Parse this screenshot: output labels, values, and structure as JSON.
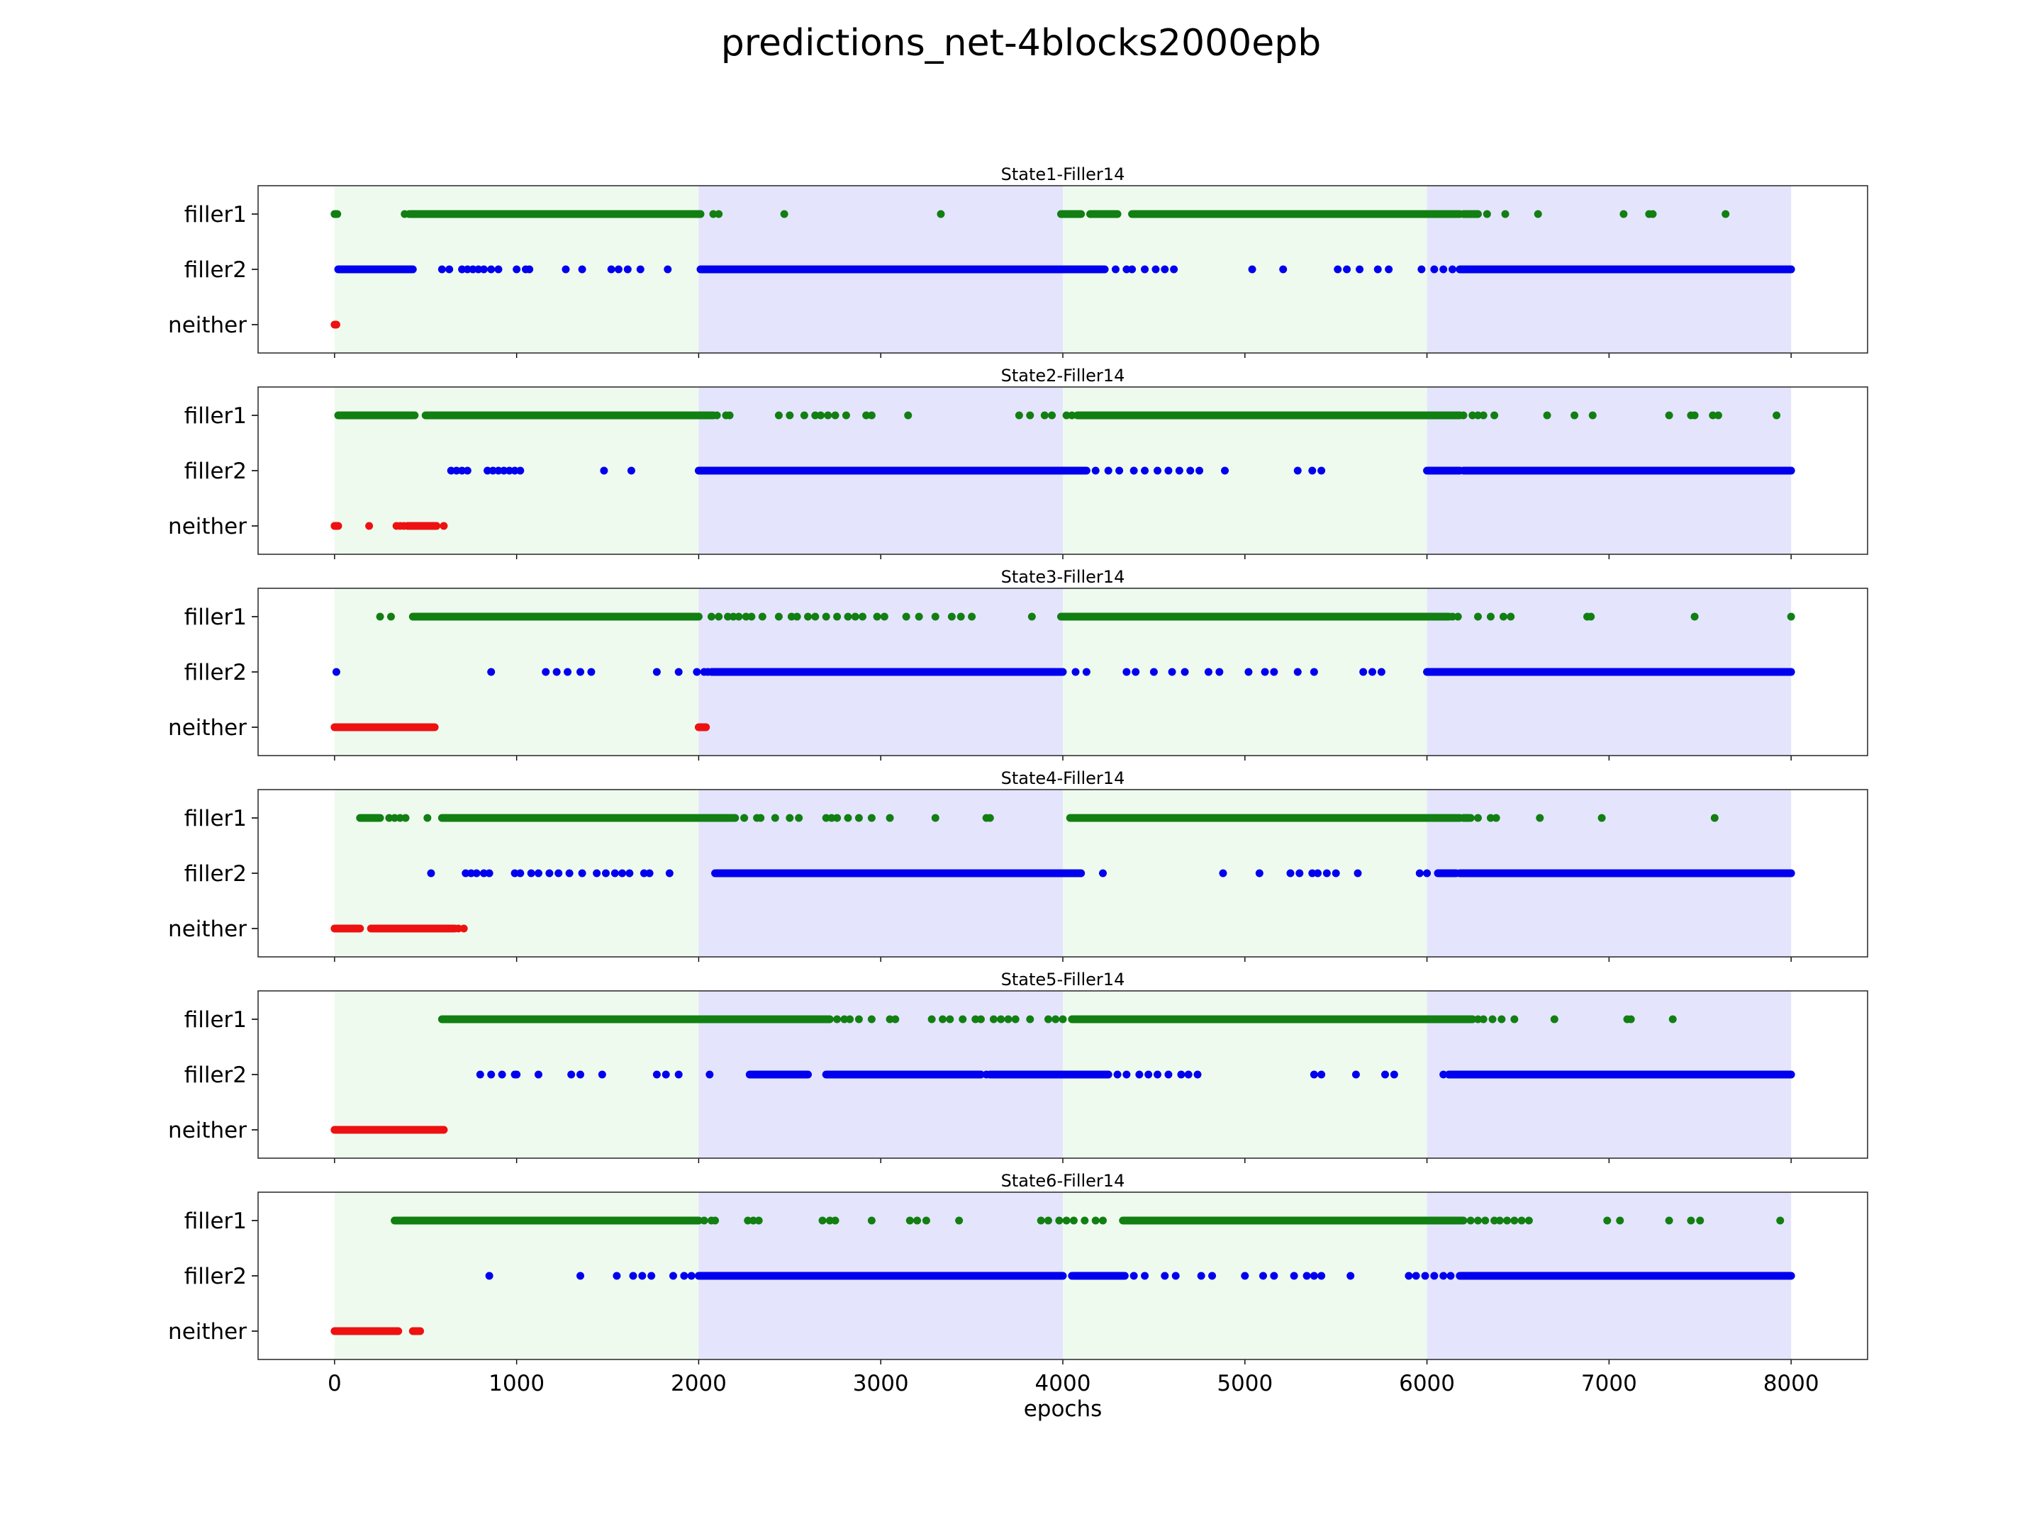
{
  "figure": {
    "title": "predictions_net-4blocks2000epb"
  },
  "chart_data": {
    "type": "scatter",
    "title": "predictions_net-4blocks2000epb",
    "xlabel": "epochs",
    "xlim": [
      -420,
      8420
    ],
    "x_ticks": [
      0,
      1000,
      2000,
      3000,
      4000,
      5000,
      6000,
      7000,
      8000
    ],
    "categories": [
      "filler1",
      "filler2",
      "neither"
    ],
    "colors": {
      "filler1": "#117f11",
      "filler2": "#0000ee",
      "neither": "#ee1111"
    },
    "shaded_blocks": [
      {
        "start": 0,
        "end": 2000,
        "color": "#effaef"
      },
      {
        "start": 2000,
        "end": 4000,
        "color": "#e4e4fd"
      },
      {
        "start": 4000,
        "end": 6000,
        "color": "#effaef"
      },
      {
        "start": 6000,
        "end": 8000,
        "color": "#e4e4fd"
      }
    ],
    "subplots": [
      {
        "title": "State1-Filler14",
        "series": [
          {
            "name": "filler1",
            "segments": [
              [
                0,
                15
              ],
              [
                410,
                2010
              ],
              [
                3990,
                4100
              ],
              [
                4150,
                4300
              ],
              [
                4380,
                6180
              ],
              [
                6200,
                6280
              ]
            ],
            "points": [
              385,
              2080,
              2110,
              2470,
              3330,
              6330,
              6430,
              6610,
              7080,
              7220,
              7240,
              7640
            ]
          },
          {
            "name": "filler2",
            "segments": [
              [
                20,
                430
              ],
              [
                2010,
                4230
              ],
              [
                6180,
                8000
              ]
            ],
            "points": [
              590,
              630,
              700,
              730,
              760,
              790,
              820,
              860,
              900,
              1000,
              1050,
              1070,
              1270,
              1360,
              1520,
              1560,
              1610,
              1680,
              1830,
              4290,
              4350,
              4380,
              4450,
              4510,
              4560,
              4610,
              5040,
              5210,
              5510,
              5560,
              5630,
              5730,
              5790,
              5970,
              6040,
              6090,
              6140
            ]
          },
          {
            "name": "neither",
            "segments": [
              [
                0,
                10
              ]
            ],
            "points": []
          }
        ]
      },
      {
        "title": "State2-Filler14",
        "series": [
          {
            "name": "filler1",
            "segments": [
              [
                20,
                440
              ],
              [
                500,
                2080
              ],
              [
                4080,
                6180
              ]
            ],
            "points": [
              2100,
              2150,
              2170,
              2440,
              2500,
              2580,
              2640,
              2670,
              2710,
              2750,
              2810,
              2920,
              2950,
              3150,
              3760,
              3820,
              3900,
              3940,
              4020,
              4050,
              6200,
              6250,
              6280,
              6310,
              6370,
              6660,
              6810,
              6910,
              7330,
              7450,
              7470,
              7570,
              7600,
              7920
            ]
          },
          {
            "name": "filler2",
            "segments": [
              [
                2000,
                4130
              ],
              [
                6000,
                6180
              ],
              [
                6200,
                8000
              ]
            ],
            "points": [
              640,
              670,
              700,
              730,
              840,
              870,
              900,
              930,
              960,
              990,
              1020,
              1480,
              1630,
              4180,
              4250,
              4310,
              4390,
              4450,
              4520,
              4580,
              4640,
              4700,
              4750,
              4890,
              5290,
              5370,
              5420
            ]
          },
          {
            "name": "neither",
            "segments": [
              [
                0,
                20
              ],
              [
                400,
                560
              ]
            ],
            "points": [
              190,
              340,
              360,
              380,
              600
            ]
          }
        ]
      },
      {
        "title": "State3-Filler14",
        "series": [
          {
            "name": "filler1",
            "segments": [
              [
                430,
                2000
              ],
              [
                4000,
                6120
              ]
            ],
            "points": [
              250,
              310,
              2070,
              2110,
              2160,
              2190,
              2220,
              2260,
              2290,
              2350,
              2440,
              2510,
              2540,
              2600,
              2640,
              2700,
              2760,
              2820,
              2860,
              2900,
              2980,
              3020,
              3140,
              3210,
              3300,
              3390,
              3440,
              3500,
              3830,
              3990,
              6140,
              6170,
              6280,
              6350,
              6420,
              6460,
              6880,
              6900,
              7470,
              8000
            ]
          },
          {
            "name": "filler2",
            "segments": [
              [
                2070,
                4000
              ],
              [
                6000,
                8000
              ]
            ],
            "points": [
              10,
              860,
              1160,
              1220,
              1280,
              1350,
              1410,
              1770,
              1890,
              1990,
              2030,
              2050,
              4070,
              4130,
              4350,
              4400,
              4500,
              4600,
              4670,
              4800,
              4860,
              5020,
              5110,
              5160,
              5290,
              5380,
              5650,
              5700,
              5750
            ]
          },
          {
            "name": "neither",
            "segments": [
              [
                0,
                550
              ],
              [
                2000,
                2040
              ]
            ],
            "points": []
          }
        ]
      },
      {
        "title": "State4-Filler14",
        "series": [
          {
            "name": "filler1",
            "segments": [
              [
                140,
                250
              ],
              [
                590,
                2200
              ],
              [
                4040,
                6180
              ],
              [
                6200,
                6240
              ]
            ],
            "points": [
              300,
              330,
              360,
              390,
              510,
              2250,
              2320,
              2340,
              2420,
              2500,
              2550,
              2700,
              2730,
              2760,
              2820,
              2880,
              2950,
              3050,
              3300,
              3580,
              3600,
              6280,
              6350,
              6380,
              6620,
              6960,
              7580
            ]
          },
          {
            "name": "filler2",
            "segments": [
              [
                2090,
                4100
              ],
              [
                6060,
                6160
              ],
              [
                6180,
                8000
              ]
            ],
            "points": [
              530,
              720,
              750,
              780,
              820,
              850,
              990,
              1020,
              1080,
              1120,
              1180,
              1230,
              1290,
              1360,
              1440,
              1490,
              1540,
              1580,
              1620,
              1700,
              1730,
              1840,
              4220,
              4880,
              5080,
              5250,
              5300,
              5370,
              5400,
              5450,
              5500,
              5620,
              5960,
              6000
            ]
          },
          {
            "name": "neither",
            "segments": [
              [
                0,
                140
              ],
              [
                200,
                660
              ]
            ],
            "points": [
              680,
              710
            ]
          }
        ]
      },
      {
        "title": "State5-Filler14",
        "series": [
          {
            "name": "filler1",
            "segments": [
              [
                590,
                2720
              ],
              [
                4060,
                6250
              ]
            ],
            "points": [
              2760,
              2800,
              2830,
              2880,
              2950,
              3050,
              3080,
              3280,
              3340,
              3380,
              3450,
              3520,
              3550,
              3620,
              3660,
              3700,
              3740,
              3820,
              3920,
              3960,
              4000,
              4050,
              6280,
              6310,
              6360,
              6410,
              6480,
              6700,
              7100,
              7120,
              7350
            ]
          },
          {
            "name": "filler2",
            "segments": [
              [
                2280,
                2600
              ],
              [
                2700,
                3550
              ],
              [
                3600,
                4250
              ],
              [
                6120,
                8000
              ]
            ],
            "points": [
              800,
              860,
              920,
              990,
              1000,
              1120,
              1300,
              1350,
              1470,
              1770,
              1820,
              1890,
              2060,
              3580,
              4300,
              4350,
              4420,
              4470,
              4520,
              4580,
              4650,
              4690,
              4740,
              5380,
              5420,
              5610,
              5770,
              5820,
              6090
            ]
          },
          {
            "name": "neither",
            "segments": [
              [
                0,
                600
              ]
            ],
            "points": []
          }
        ]
      },
      {
        "title": "State6-Filler14",
        "series": [
          {
            "name": "filler1",
            "segments": [
              [
                330,
                2000
              ],
              [
                4330,
                6200
              ]
            ],
            "points": [
              2030,
              2070,
              2090,
              2270,
              2300,
              2330,
              2680,
              2720,
              2750,
              2950,
              3160,
              3200,
              3250,
              3430,
              3880,
              3920,
              3980,
              4020,
              4060,
              4120,
              4180,
              4220,
              6240,
              6280,
              6320,
              6370,
              6400,
              6440,
              6480,
              6520,
              6560,
              6990,
              7060,
              7330,
              7450,
              7500,
              7940
            ]
          },
          {
            "name": "filler2",
            "segments": [
              [
                2000,
                4000
              ],
              [
                4060,
                4340
              ],
              [
                6180,
                8000
              ]
            ],
            "points": [
              850,
              1350,
              1550,
              1640,
              1690,
              1740,
              1860,
              1920,
              1960,
              4050,
              4390,
              4450,
              4560,
              4620,
              4760,
              4820,
              5000,
              5100,
              5160,
              5270,
              5340,
              5380,
              5420,
              5580,
              5900,
              5940,
              5990,
              6040,
              6090,
              6130
            ]
          },
          {
            "name": "neither",
            "segments": [
              [
                0,
                350
              ],
              [
                430,
                470
              ]
            ],
            "points": []
          }
        ]
      }
    ]
  }
}
